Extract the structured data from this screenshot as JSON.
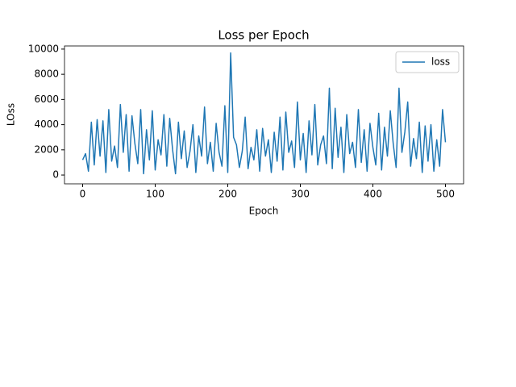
{
  "chart_data": {
    "type": "line",
    "title": "Loss per Epoch",
    "x_label": "Epoch",
    "y_label": "LOss",
    "x": [
      0,
      4,
      8,
      12,
      16,
      20,
      24,
      28,
      32,
      36,
      40,
      44,
      48,
      52,
      56,
      60,
      64,
      68,
      72,
      76,
      80,
      84,
      88,
      92,
      96,
      100,
      104,
      108,
      112,
      116,
      120,
      124,
      128,
      132,
      136,
      140,
      144,
      148,
      152,
      156,
      160,
      164,
      168,
      172,
      176,
      180,
      184,
      188,
      192,
      196,
      200,
      204,
      208,
      212,
      216,
      220,
      224,
      228,
      232,
      236,
      240,
      244,
      248,
      252,
      256,
      260,
      264,
      268,
      272,
      276,
      280,
      284,
      288,
      292,
      296,
      300,
      304,
      308,
      312,
      316,
      320,
      324,
      328,
      332,
      336,
      340,
      344,
      348,
      352,
      356,
      360,
      364,
      368,
      372,
      376,
      380,
      384,
      388,
      392,
      396,
      400,
      404,
      408,
      412,
      416,
      420,
      424,
      428,
      432,
      436,
      440,
      444,
      448,
      452,
      456,
      460,
      464,
      468,
      472,
      476,
      480,
      484,
      488,
      492,
      496,
      500
    ],
    "series": [
      {
        "name": "loss",
        "color": "#1f77b4",
        "values": [
          1200,
          1700,
          300,
          4200,
          800,
          4400,
          1500,
          4300,
          200,
          5200,
          1100,
          2300,
          600,
          5600,
          1800,
          4800,
          300,
          4700,
          2500,
          900,
          5200,
          100,
          3600,
          1200,
          5100,
          400,
          2800,
          1600,
          4800,
          700,
          4500,
          2000,
          100,
          4200,
          1300,
          3500,
          600,
          1900,
          4000,
          200,
          3100,
          1500,
          5400,
          900,
          2600,
          300,
          4100,
          1800,
          700,
          5500,
          200,
          9700,
          3000,
          2400,
          600,
          1900,
          4600,
          500,
          2200,
          1200,
          3600,
          300,
          3700,
          1500,
          2800,
          200,
          3400,
          1100,
          4600,
          400,
          5000,
          1800,
          2700,
          600,
          5800,
          1200,
          3300,
          200,
          4300,
          1600,
          5600,
          800,
          2400,
          3100,
          900,
          6900,
          500,
          5300,
          1400,
          3800,
          200,
          4800,
          1700,
          2600,
          600,
          5200,
          1000,
          3600,
          300,
          4100,
          2200,
          800,
          4900,
          400,
          3800,
          1500,
          5100,
          2500,
          600,
          6900,
          1800,
          3400,
          5800,
          700,
          2900,
          1300,
          4200,
          200,
          3900,
          1100,
          4000,
          300,
          2800,
          700,
          5200,
          2600
        ]
      }
    ],
    "xlim": [
      -25,
      525
    ],
    "ylim": [
      -700,
      10250
    ],
    "xticks": [
      0,
      100,
      200,
      300,
      400,
      500
    ],
    "yticks": [
      0,
      2000,
      4000,
      6000,
      8000,
      10000
    ],
    "legend": "upper right"
  }
}
